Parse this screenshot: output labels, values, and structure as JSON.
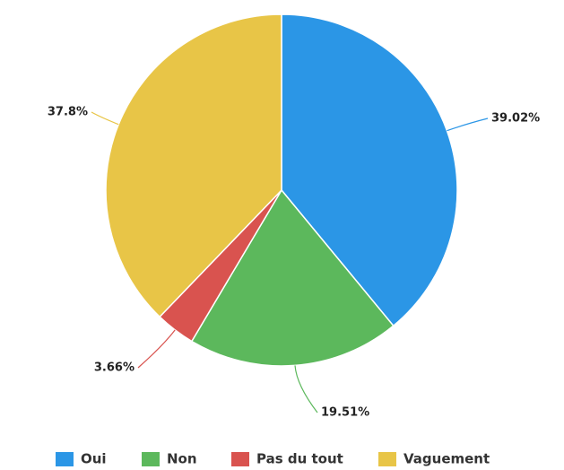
{
  "chart_data": {
    "type": "pie",
    "categories": [
      "Oui",
      "Non",
      "Pas du tout",
      "Vaguement"
    ],
    "values": [
      39.02,
      19.51,
      3.66,
      37.8
    ],
    "value_labels": [
      "39.02%",
      "19.51%",
      "3.66%",
      "37.8%"
    ],
    "colors": [
      "#2b96e6",
      "#5cb85c",
      "#d9534f",
      "#e8c547"
    ],
    "legend": "bottom"
  }
}
